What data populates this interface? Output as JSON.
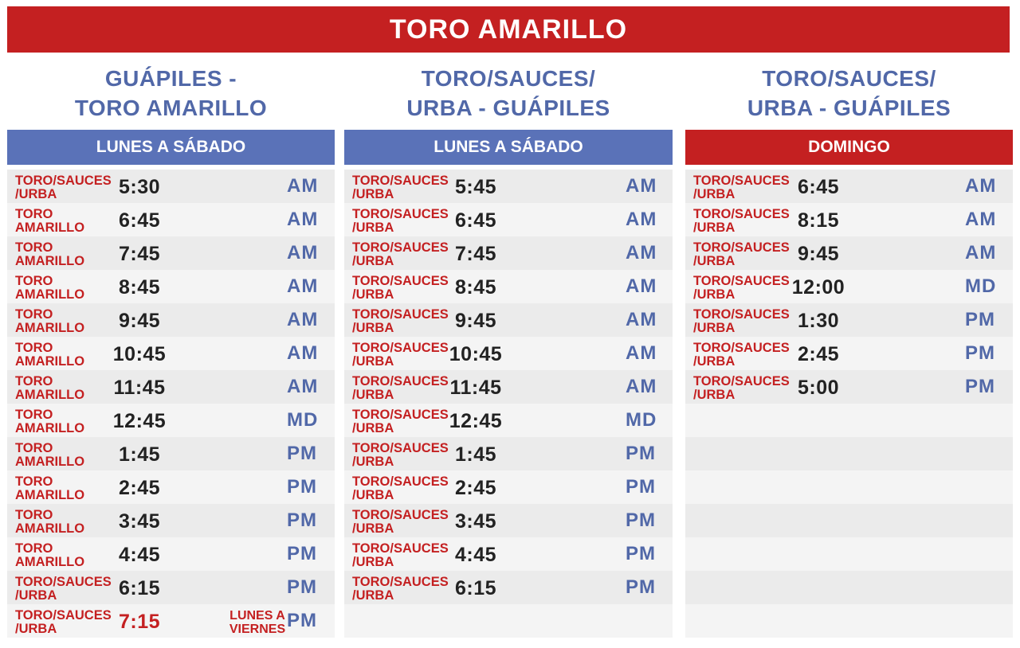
{
  "title": "TORO AMARILLO",
  "columns": [
    {
      "route_line1": "GUÁPILES -",
      "route_line2": "TORO AMARILLO",
      "day_label": "LUNES A SÁBADO",
      "rows": [
        {
          "origin1": "TORO/SAUCES",
          "origin2": "/URBA",
          "time": "5:30",
          "period": "AM"
        },
        {
          "origin1": "TORO",
          "origin2": "AMARILLO",
          "time": "6:45",
          "period": "AM"
        },
        {
          "origin1": "TORO",
          "origin2": "AMARILLO",
          "time": "7:45",
          "period": "AM"
        },
        {
          "origin1": "TORO",
          "origin2": "AMARILLO",
          "time": "8:45",
          "period": "AM"
        },
        {
          "origin1": "TORO",
          "origin2": "AMARILLO",
          "time": "9:45",
          "period": "AM"
        },
        {
          "origin1": "TORO",
          "origin2": "AMARILLO",
          "time": "10:45",
          "period": "AM"
        },
        {
          "origin1": "TORO",
          "origin2": "AMARILLO",
          "time": "11:45",
          "period": "AM"
        },
        {
          "origin1": "TORO",
          "origin2": "AMARILLO",
          "time": "12:45",
          "period": "MD"
        },
        {
          "origin1": "TORO",
          "origin2": "AMARILLO",
          "time": "1:45",
          "period": "PM"
        },
        {
          "origin1": "TORO",
          "origin2": "AMARILLO",
          "time": "2:45",
          "period": "PM"
        },
        {
          "origin1": "TORO",
          "origin2": "AMARILLO",
          "time": "3:45",
          "period": "PM"
        },
        {
          "origin1": "TORO",
          "origin2": "AMARILLO",
          "time": "4:45",
          "period": "PM"
        },
        {
          "origin1": "TORO/SAUCES",
          "origin2": "/URBA",
          "time": "6:15",
          "period": "PM"
        },
        {
          "origin1": "TORO/SAUCES",
          "origin2": "/URBA",
          "time": "7:15",
          "period": "PM",
          "note1": "LUNES A",
          "note2": "VIERNES",
          "highlight": true
        }
      ]
    },
    {
      "route_line1": "TORO/SAUCES/",
      "route_line2": "URBA - GUÁPILES",
      "day_label": "LUNES A SÁBADO",
      "rows": [
        {
          "origin1": "TORO/SAUCES",
          "origin2": "/URBA",
          "time": "5:45",
          "period": "AM"
        },
        {
          "origin1": "TORO/SAUCES",
          "origin2": "/URBA",
          "time": "6:45",
          "period": "AM"
        },
        {
          "origin1": "TORO/SAUCES",
          "origin2": "/URBA",
          "time": "7:45",
          "period": "AM"
        },
        {
          "origin1": "TORO/SAUCES",
          "origin2": "/URBA",
          "time": "8:45",
          "period": "AM"
        },
        {
          "origin1": "TORO/SAUCES",
          "origin2": "/URBA",
          "time": "9:45",
          "period": "AM"
        },
        {
          "origin1": "TORO/SAUCES",
          "origin2": "/URBA",
          "time": "10:45",
          "period": "AM"
        },
        {
          "origin1": "TORO/SAUCES",
          "origin2": "/URBA",
          "time": "11:45",
          "period": "AM"
        },
        {
          "origin1": "TORO/SAUCES",
          "origin2": "/URBA",
          "time": "12:45",
          "period": "MD"
        },
        {
          "origin1": "TORO/SAUCES",
          "origin2": "/URBA",
          "time": "1:45",
          "period": "PM"
        },
        {
          "origin1": "TORO/SAUCES",
          "origin2": "/URBA",
          "time": "2:45",
          "period": "PM"
        },
        {
          "origin1": "TORO/SAUCES",
          "origin2": "/URBA",
          "time": "3:45",
          "period": "PM"
        },
        {
          "origin1": "TORO/SAUCES",
          "origin2": "/URBA",
          "time": "4:45",
          "period": "PM"
        },
        {
          "origin1": "TORO/SAUCES",
          "origin2": "/URBA",
          "time": "6:15",
          "period": "PM"
        }
      ]
    },
    {
      "route_line1": "TORO/SAUCES/",
      "route_line2": "URBA - GUÁPILES",
      "day_label": "DOMINGO",
      "rows": [
        {
          "origin1": "TORO/SAUCES",
          "origin2": "/URBA",
          "time": "6:45",
          "period": "AM"
        },
        {
          "origin1": "TORO/SAUCES",
          "origin2": "/URBA",
          "time": "8:15",
          "period": "AM"
        },
        {
          "origin1": "TORO/SAUCES",
          "origin2": "/URBA",
          "time": "9:45",
          "period": "AM"
        },
        {
          "origin1": "TORO/SAUCES",
          "origin2": "/URBA",
          "time": "12:00",
          "period": "MD"
        },
        {
          "origin1": "TORO/SAUCES",
          "origin2": "/URBA",
          "time": "1:30",
          "period": "PM"
        },
        {
          "origin1": "TORO/SAUCES",
          "origin2": "/URBA",
          "time": "2:45",
          "period": "PM"
        },
        {
          "origin1": "TORO/SAUCES",
          "origin2": "/URBA",
          "time": "5:00",
          "period": "PM"
        }
      ]
    }
  ]
}
